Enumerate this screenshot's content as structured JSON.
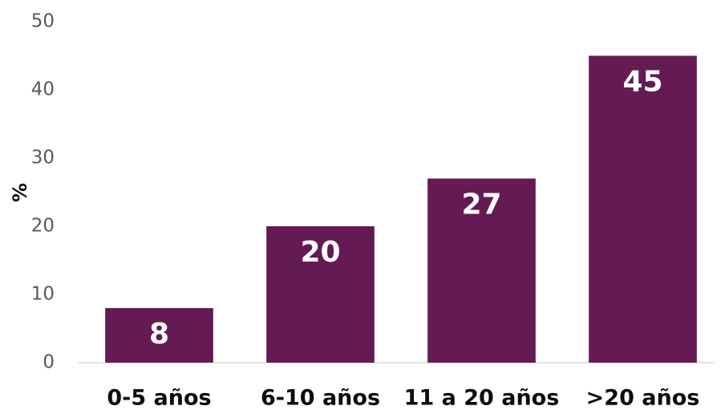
{
  "chart_data": {
    "type": "bar",
    "y_label": "%",
    "categories": [
      "0-5 años",
      "6-10 años",
      "11 a 20 años",
      ">20 años"
    ],
    "values": [
      8,
      20,
      27,
      45
    ],
    "color": "#641b54",
    "ylim": [
      0,
      50
    ],
    "yticks": [
      0,
      10,
      20,
      30,
      40,
      50
    ],
    "grid": false
  }
}
